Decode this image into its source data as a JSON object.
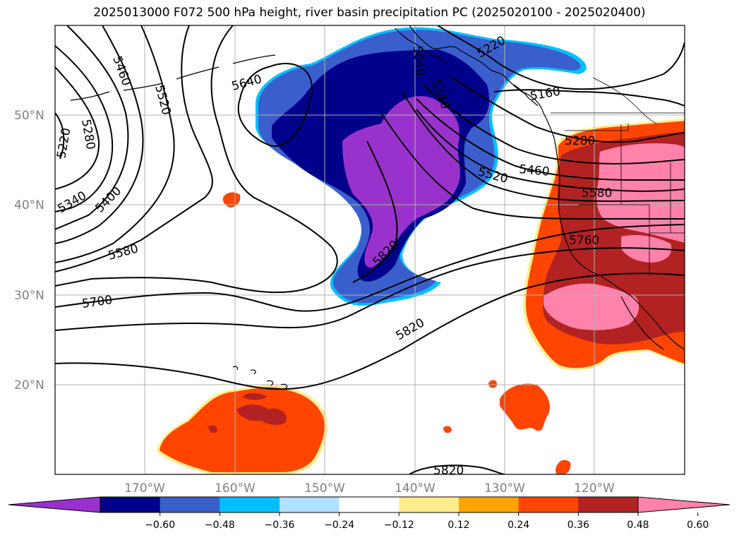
{
  "title": "2025013000 F072 500 hPa height, river basin precipitation PC (2025020100 - 2025020400)",
  "lat_labels": [
    "50°N",
    "40°N",
    "30°N",
    "20°N"
  ],
  "lon_labels": [
    "170°W",
    "160°W",
    "150°W",
    "140°W",
    "130°W",
    "120°W"
  ],
  "contour_labels": [
    "5220",
    "5280",
    "5340",
    "5400",
    "5460",
    "5520",
    "5580",
    "5640",
    "5700",
    "5820",
    "5160",
    "5220",
    "5280",
    "5340",
    "5460",
    "5520",
    "5580",
    "5640",
    "5760",
    "5820",
    "5820"
  ],
  "colorbar": {
    "ticks": [
      "−0.60",
      "−0.48",
      "−0.36",
      "−0.24",
      "−0.12",
      "0.12",
      "0.24",
      "0.36",
      "0.48",
      "0.60"
    ],
    "colors": [
      "#9932cc",
      "#00008b",
      "#3a5fcd",
      "#00bfff",
      "#b0e2ff",
      "#ffffff",
      "#ffec8b",
      "#ffa500",
      "#ff4500",
      "#b22222",
      "#ff82ab"
    ]
  },
  "map_colors": {
    "land_outline": "#000000",
    "grid": "#b0b0b0",
    "contour": "#000000"
  }
}
